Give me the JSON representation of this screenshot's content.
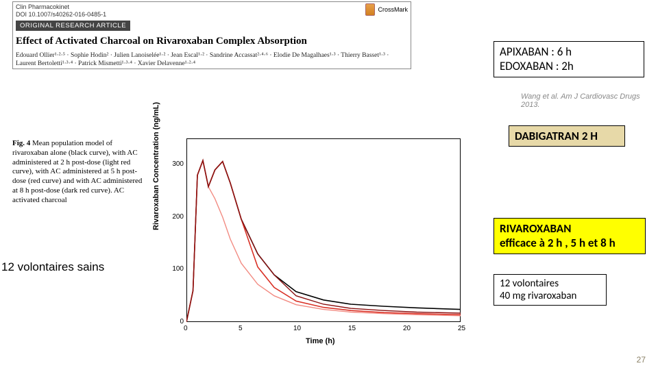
{
  "journal": {
    "name": "Clin Pharmacokinet",
    "doi": "DOI 10.1007/s40262-016-0485-1",
    "crossmark": "CrossMark",
    "article_type": "ORIGINAL RESEARCH ARTICLE"
  },
  "paper": {
    "title": "Effect of Activated Charcoal on Rivaroxaban Complex Absorption",
    "authors": "Edouard Ollier¹·²·⁵ · Sophie Hodin² · Julien Lanoiselée¹·² · Jean Escal¹·² · Sandrine Accassat²·⁴·⁶ · Elodie De Magalhaes¹·³ · Thierry Basset¹·³ · Laurent Bertoletti¹·³·⁴ · Patrick Mismetti¹·³·⁴ · Xavier Delavenne¹·²·⁴"
  },
  "figcaption": {
    "label": "Fig. 4",
    "text": " Mean population model of rivaroxaban alone (black curve), with AC administered at 2 h post-dose (light red curve), with AC administered at 5 h post-dose (red curve) and with AC administered at 8 h post-dose (dark red curve). AC activated charcoal"
  },
  "boxes": {
    "apix_l1": "APIXABAN : 6 h",
    "apix_l2": "EDOXABAN :  2h",
    "citation": "Wang et al. Am J Cardiovasc Drugs 2013.",
    "dabi": "DABIGATRAN 2 H",
    "riva_l1": "RIVAROXABAN",
    "riva_l2": "efficace à 2 h , 5 h et 8 h",
    "leftnote": "12 volontaires sains",
    "vol_l1": "12 volontaires",
    "vol_l2": "40 mg rivaroxaban",
    "slidenum": "27"
  },
  "chart": {
    "type": "line",
    "xlabel": "Time (h)",
    "ylabel": "Rivaroxaban Concentration (ng/mL)",
    "xlim": [
      0,
      25
    ],
    "ylim": [
      0,
      350
    ],
    "xticks": [
      0,
      5,
      10,
      15,
      20,
      25
    ],
    "yticks": [
      0,
      100,
      200,
      300
    ],
    "label_fontsize": 11,
    "background_color": "#ffffff",
    "series": [
      {
        "name": "alone (black)",
        "color": "#000000",
        "width": 1.6,
        "x": [
          0,
          0.6,
          1.0,
          1.5,
          2.0,
          2.6,
          3.3,
          4.0,
          5.0,
          6.5,
          8.0,
          10.0,
          12.5,
          15.0,
          18.0,
          21.0,
          25.0
        ],
        "y": [
          0,
          60,
          280,
          308,
          258,
          290,
          306,
          265,
          196,
          130,
          90,
          58,
          42,
          34,
          30,
          27,
          24
        ]
      },
      {
        "name": "AC @2h (light red)",
        "color": "#f28b82",
        "width": 1.4,
        "x": [
          0,
          0.6,
          1.0,
          1.5,
          2.0,
          2.6,
          3.3,
          4.0,
          5.0,
          6.5,
          8.0,
          10.0,
          12.5,
          15.0,
          18.0,
          21.0,
          25.0
        ],
        "y": [
          0,
          60,
          280,
          308,
          258,
          235,
          200,
          158,
          112,
          72,
          50,
          33,
          24,
          19,
          16,
          14,
          12
        ]
      },
      {
        "name": "AC @5h (red)",
        "color": "#d93025",
        "width": 1.6,
        "x": [
          0,
          0.6,
          1.0,
          1.5,
          2.0,
          2.6,
          3.3,
          4.0,
          5.0,
          6.5,
          8.0,
          10.0,
          12.5,
          15.0,
          18.0,
          21.0,
          25.0
        ],
        "y": [
          0,
          60,
          280,
          308,
          258,
          290,
          306,
          265,
          196,
          105,
          66,
          40,
          28,
          22,
          18,
          16,
          14
        ]
      },
      {
        "name": "AC @8h (dark red)",
        "color": "#8a1010",
        "width": 1.4,
        "x": [
          0,
          0.6,
          1.0,
          1.5,
          2.0,
          2.6,
          3.3,
          4.0,
          5.0,
          6.5,
          8.0,
          10.0,
          12.5,
          15.0,
          18.0,
          21.0,
          25.0
        ],
        "y": [
          0,
          60,
          280,
          308,
          258,
          290,
          306,
          265,
          196,
          130,
          90,
          50,
          34,
          26,
          22,
          19,
          17
        ]
      }
    ]
  }
}
